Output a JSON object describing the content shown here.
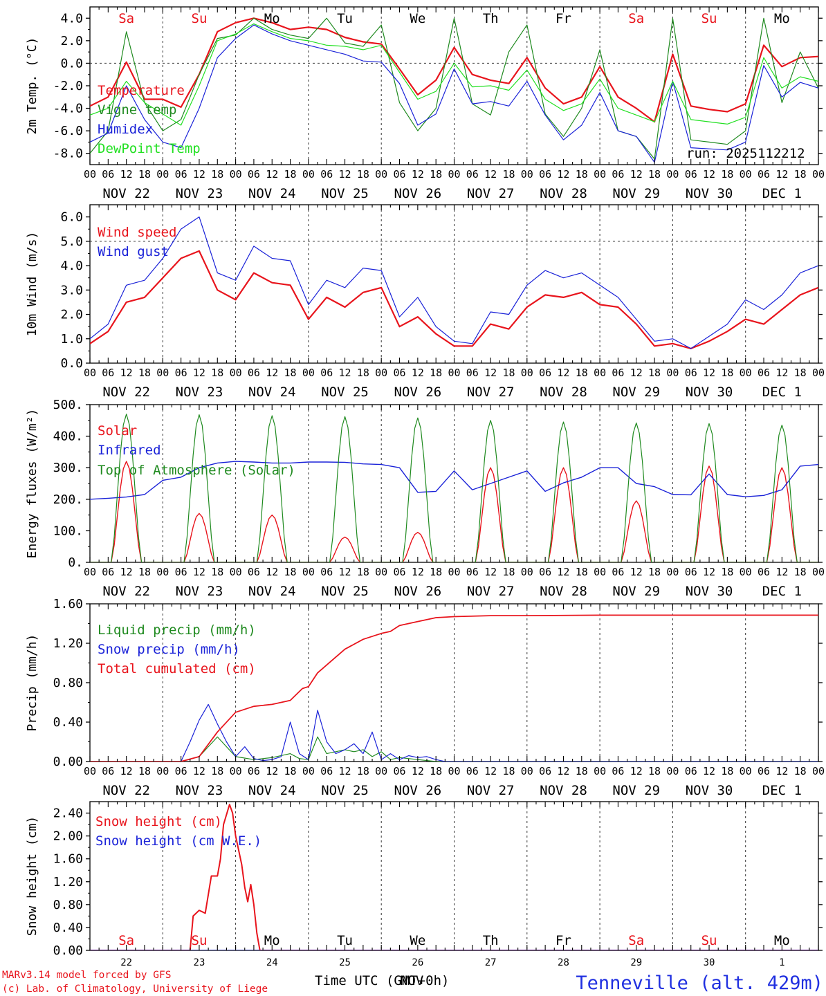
{
  "colors": {
    "red": "#e8141c",
    "green": "#1f8a1f",
    "blue": "#1a22d8",
    "light_green": "#22e022",
    "ink": "#000000",
    "title_blue": "#2030e0"
  },
  "days": {
    "names": [
      "Sa",
      "Su",
      "Mo",
      "Tu",
      "We",
      "Th",
      "Fr",
      "Sa",
      "Su",
      "Mo"
    ],
    "weekend_flags": [
      true,
      true,
      false,
      false,
      false,
      false,
      false,
      true,
      true,
      false
    ],
    "date_labels": [
      "NOV 22",
      "NOV 23",
      "NOV 24",
      "NOV 25",
      "NOV 26",
      "NOV 27",
      "NOV 28",
      "NOV 29",
      "NOV 30",
      "DEC  1"
    ],
    "day_numbers": [
      "22",
      "23",
      "24",
      "25",
      "26",
      "27",
      "28",
      "29",
      "30",
      "1"
    ],
    "hour_ticks": [
      "00",
      "06",
      "12",
      "18"
    ],
    "final_tick": "00"
  },
  "footer": {
    "model": "MARv3.14 model forced by GFS",
    "copyright": "(c) Lab. of Climatology, University of Liege",
    "xlabel": "Time UTC (GMT+0h)",
    "xlabel_overlap": "NOV",
    "station": "Tenneville (alt. 429m)"
  },
  "chart_data": [
    {
      "type": "line",
      "id": "temp",
      "title": "2m Temp. (°C)",
      "ylabel": "2m Temp. (°C)",
      "ylim": [
        -9,
        5
      ],
      "yticks": [
        4,
        2,
        0,
        -2,
        -4,
        -6,
        -8
      ],
      "ytick_labels": [
        "4.0",
        "2.0",
        "0.0",
        "-2.0",
        "-4.0",
        "-6.0",
        "-8.0"
      ],
      "ref_line": 0,
      "annotation": "run: 2025112212",
      "x_unit": "hours since 2025-11-22 00 UTC",
      "series": [
        {
          "name": "Temperature",
          "color": "red",
          "stroke": 2.2,
          "x": [
            0,
            6,
            12,
            18,
            24,
            30,
            36,
            42,
            48,
            54,
            60,
            66,
            72,
            78,
            84,
            90,
            96,
            102,
            108,
            114,
            120,
            126,
            132,
            138,
            144,
            150,
            156,
            162,
            168,
            174,
            180,
            186,
            192,
            198,
            204,
            210,
            216,
            222,
            228,
            234,
            240
          ],
          "y": [
            -3.8,
            -3.0,
            0.1,
            -3.2,
            -3.2,
            -3.9,
            -1.0,
            2.8,
            3.6,
            4.0,
            3.6,
            3.0,
            3.2,
            3.0,
            2.3,
            1.9,
            1.7,
            -0.5,
            -2.8,
            -1.5,
            1.4,
            -1.0,
            -1.5,
            -1.8,
            0.5,
            -2.2,
            -3.6,
            -3.0,
            -0.3,
            -3.0,
            -4.0,
            -5.2,
            0.8,
            -3.8,
            -4.1,
            -4.3,
            -3.6,
            1.6,
            -0.3,
            0.5,
            0.6
          ]
        },
        {
          "name": "Vigne temp",
          "color": "green",
          "stroke": 1.2,
          "x": [
            0,
            6,
            12,
            18,
            24,
            30,
            36,
            42,
            48,
            54,
            60,
            66,
            72,
            78,
            84,
            90,
            96,
            102,
            108,
            114,
            120,
            126,
            132,
            138,
            144,
            150,
            156,
            162,
            168,
            174,
            180,
            186,
            192,
            198,
            204,
            210,
            216,
            222,
            228,
            234,
            240
          ],
          "y": [
            -8.0,
            -6.0,
            2.8,
            -3.5,
            -6.0,
            -5.0,
            -1.0,
            2.2,
            2.5,
            4.0,
            3.0,
            2.5,
            2.2,
            4.0,
            1.8,
            1.5,
            3.4,
            -3.5,
            -6.0,
            -4.0,
            4.0,
            -3.6,
            -4.6,
            1.0,
            3.4,
            -4.5,
            -6.5,
            -4.0,
            1.2,
            -6.0,
            -6.5,
            -8.5,
            4.0,
            -6.8,
            -7.0,
            -7.2,
            -6.0,
            4.0,
            -3.5,
            1.0,
            -2.2
          ]
        },
        {
          "name": "Humidex",
          "color": "blue",
          "stroke": 1.2,
          "x": [
            0,
            6,
            12,
            18,
            24,
            30,
            36,
            42,
            48,
            54,
            60,
            66,
            72,
            78,
            84,
            90,
            96,
            102,
            108,
            114,
            120,
            126,
            132,
            138,
            144,
            150,
            156,
            162,
            168,
            174,
            180,
            186,
            192,
            198,
            204,
            210,
            216,
            222,
            228,
            234,
            240
          ],
          "y": [
            -7.0,
            -6.2,
            -2.0,
            -5.0,
            -7.0,
            -7.5,
            -4.0,
            0.5,
            2.2,
            3.4,
            2.6,
            2.0,
            1.6,
            1.2,
            0.8,
            0.2,
            0.1,
            -1.8,
            -5.5,
            -4.5,
            -0.5,
            -3.6,
            -3.4,
            -3.8,
            -1.6,
            -4.6,
            -6.8,
            -5.5,
            -2.6,
            -6.0,
            -6.5,
            -8.8,
            -1.6,
            -7.5,
            -7.6,
            -7.7,
            -7.0,
            -0.2,
            -3.0,
            -1.7,
            -2.2
          ]
        },
        {
          "name": "DewPoint Temp",
          "color": "light_green",
          "stroke": 1.2,
          "x": [
            0,
            6,
            12,
            18,
            24,
            30,
            36,
            42,
            48,
            54,
            60,
            66,
            72,
            78,
            84,
            90,
            96,
            102,
            108,
            114,
            120,
            126,
            132,
            138,
            144,
            150,
            156,
            162,
            168,
            174,
            180,
            186,
            192,
            198,
            204,
            210,
            216,
            222,
            228,
            234,
            240
          ],
          "y": [
            -4.6,
            -4.0,
            -1.6,
            -3.5,
            -4.5,
            -5.5,
            -2.0,
            2.0,
            2.6,
            3.5,
            2.8,
            2.2,
            2.0,
            1.6,
            1.5,
            1.2,
            1.6,
            -0.8,
            -3.2,
            -2.5,
            0.0,
            -2.1,
            -2.0,
            -2.4,
            -0.6,
            -3.2,
            -4.2,
            -3.6,
            -1.4,
            -4.0,
            -4.6,
            -5.2,
            -1.6,
            -5.0,
            -5.2,
            -5.4,
            -4.8,
            0.5,
            -2.2,
            -1.2,
            -1.6
          ]
        }
      ]
    },
    {
      "type": "line",
      "id": "wind",
      "title": "10m Wind (m/s)",
      "ylabel": "10m Wind (m/s)",
      "ylim": [
        0,
        6.5
      ],
      "yticks": [
        0,
        1,
        2,
        3,
        4,
        5,
        6
      ],
      "ytick_labels": [
        "0.0",
        "1.0",
        "2.0",
        "3.0",
        "4.0",
        "5.0",
        "6.0"
      ],
      "ref_line": 5,
      "x_unit": "hours since 2025-11-22 00 UTC",
      "series": [
        {
          "name": "Wind speed",
          "color": "red",
          "stroke": 2.2,
          "x": [
            0,
            6,
            12,
            18,
            24,
            30,
            36,
            42,
            48,
            54,
            60,
            66,
            72,
            78,
            84,
            90,
            96,
            102,
            108,
            114,
            120,
            126,
            132,
            138,
            144,
            150,
            156,
            162,
            168,
            174,
            180,
            186,
            192,
            198,
            204,
            210,
            216,
            222,
            228,
            234,
            240
          ],
          "y": [
            0.8,
            1.3,
            2.5,
            2.7,
            3.5,
            4.3,
            4.6,
            3.0,
            2.6,
            3.7,
            3.3,
            3.2,
            1.8,
            2.7,
            2.3,
            2.9,
            3.1,
            1.5,
            1.9,
            1.2,
            0.7,
            0.7,
            1.6,
            1.4,
            2.3,
            2.8,
            2.7,
            2.9,
            2.4,
            2.3,
            1.6,
            0.7,
            0.8,
            0.6,
            0.9,
            1.3,
            1.8,
            1.6,
            2.2,
            2.8,
            3.1
          ]
        },
        {
          "name": "Wind gust",
          "color": "blue",
          "stroke": 1.2,
          "x": [
            0,
            6,
            12,
            18,
            24,
            30,
            36,
            42,
            48,
            54,
            60,
            66,
            72,
            78,
            84,
            90,
            96,
            102,
            108,
            114,
            120,
            126,
            132,
            138,
            144,
            150,
            156,
            162,
            168,
            174,
            180,
            186,
            192,
            198,
            204,
            210,
            216,
            222,
            228,
            234,
            240
          ],
          "y": [
            1.0,
            1.6,
            3.2,
            3.4,
            4.3,
            5.5,
            6.0,
            3.7,
            3.4,
            4.8,
            4.3,
            4.2,
            2.4,
            3.4,
            3.1,
            3.9,
            3.8,
            1.9,
            2.7,
            1.5,
            0.9,
            0.8,
            2.1,
            2.0,
            3.2,
            3.8,
            3.5,
            3.7,
            3.2,
            2.7,
            1.8,
            0.9,
            1.0,
            0.6,
            1.1,
            1.6,
            2.6,
            2.2,
            2.8,
            3.7,
            4.0
          ]
        }
      ]
    },
    {
      "type": "line",
      "id": "flux",
      "title": "Energy fluxes (W/m²)",
      "ylabel": "Energy fluxes (W/m²)",
      "ylim": [
        0,
        500
      ],
      "yticks": [
        0,
        100,
        200,
        300,
        400,
        500
      ],
      "ytick_labels": [
        "0.",
        "100.",
        "200.",
        "300.",
        "400.",
        "500."
      ],
      "x_unit": "hours since 2025-11-22 00 UTC",
      "daylight": {
        "start_hour": 7,
        "end_hour": 17,
        "peak_hour": 12
      },
      "series": [
        {
          "name": "Solar",
          "color": "red",
          "stroke": 1.4,
          "daily_peaks": [
            320,
            155,
            150,
            80,
            95,
            300,
            300,
            195,
            305,
            300
          ]
        },
        {
          "name": "Infrared",
          "color": "blue",
          "stroke": 1.4,
          "x": [
            0,
            6,
            12,
            18,
            24,
            30,
            36,
            42,
            48,
            54,
            60,
            66,
            72,
            78,
            84,
            90,
            96,
            102,
            108,
            114,
            120,
            126,
            132,
            138,
            144,
            150,
            156,
            162,
            168,
            174,
            180,
            186,
            192,
            198,
            204,
            210,
            216,
            222,
            228,
            234,
            240
          ],
          "y": [
            200,
            203,
            207,
            215,
            260,
            270,
            300,
            315,
            320,
            318,
            315,
            315,
            318,
            318,
            317,
            312,
            310,
            300,
            222,
            225,
            290,
            230,
            250,
            270,
            290,
            225,
            252,
            270,
            300,
            300,
            250,
            240,
            215,
            214,
            280,
            215,
            208,
            212,
            230,
            305,
            310
          ]
        },
        {
          "name": "Top of Atmosphere (Solar)",
          "color": "green",
          "stroke": 1.2,
          "daily_peaks": [
            470,
            468,
            465,
            462,
            458,
            450,
            445,
            442,
            440,
            435
          ]
        }
      ]
    },
    {
      "type": "line",
      "id": "precip",
      "title": "Precip (mm/h)",
      "ylabel": "Precip (mm/h)",
      "ylim": [
        0,
        1.6
      ],
      "yticks": [
        0,
        0.4,
        0.8,
        1.2,
        1.6
      ],
      "ytick_labels": [
        "0.00",
        "0.40",
        "0.80",
        "1.20",
        "1.60"
      ],
      "x_unit": "hours since 2025-11-22 00 UTC",
      "series": [
        {
          "name": "Liquid precip (mm/h)",
          "color": "green",
          "stroke": 1.2,
          "x": [
            0,
            30,
            36,
            39,
            42,
            45,
            48,
            54,
            60,
            66,
            69,
            72,
            75,
            78,
            81,
            84,
            87,
            90,
            93,
            96,
            99,
            102,
            108,
            114,
            240
          ],
          "y": [
            0,
            0,
            0.05,
            0.15,
            0.25,
            0.15,
            0.05,
            0.02,
            0.04,
            0.08,
            0.03,
            0.02,
            0.25,
            0.08,
            0.1,
            0.12,
            0.1,
            0.12,
            0.05,
            0.1,
            0.02,
            0.04,
            0.02,
            0,
            0
          ]
        },
        {
          "name": "Snow precip (mm/h)",
          "color": "blue",
          "stroke": 1.2,
          "x": [
            0,
            30,
            33,
            36,
            39,
            42,
            45,
            48,
            51,
            54,
            57,
            60,
            63,
            66,
            69,
            72,
            75,
            78,
            81,
            84,
            87,
            90,
            93,
            96,
            99,
            102,
            105,
            108,
            111,
            114,
            117,
            240
          ],
          "y": [
            0,
            0,
            0.2,
            0.42,
            0.58,
            0.38,
            0.2,
            0.05,
            0.15,
            0.03,
            0.01,
            0.02,
            0.05,
            0.4,
            0.08,
            0.02,
            0.52,
            0.2,
            0.08,
            0.12,
            0.18,
            0.08,
            0.3,
            0.02,
            0.08,
            0.02,
            0.06,
            0.04,
            0.05,
            0.02,
            0,
            0
          ]
        },
        {
          "name": "Total cumulated (cm)",
          "color": "red",
          "stroke": 1.8,
          "x": [
            0,
            30,
            36,
            42,
            48,
            54,
            60,
            66,
            70,
            72,
            75,
            78,
            84,
            90,
            96,
            99,
            102,
            108,
            114,
            120,
            132,
            144,
            168,
            192,
            216,
            240
          ],
          "y": [
            0,
            0,
            0.05,
            0.3,
            0.5,
            0.56,
            0.58,
            0.62,
            0.74,
            0.76,
            0.9,
            0.98,
            1.14,
            1.24,
            1.3,
            1.32,
            1.38,
            1.42,
            1.46,
            1.47,
            1.48,
            1.48,
            1.485,
            1.485,
            1.485,
            1.485
          ]
        }
      ]
    },
    {
      "type": "line",
      "id": "snow",
      "title": "Snow height (cm)",
      "ylabel": "Snow height (cm)",
      "ylim": [
        0,
        2.6
      ],
      "yticks": [
        0,
        0.4,
        0.8,
        1.2,
        1.6,
        2.0,
        2.4
      ],
      "ytick_labels": [
        "0.00",
        "0.40",
        "0.80",
        "1.20",
        "1.60",
        "2.00",
        "2.40"
      ],
      "x_unit": "hours since 2025-11-22 00 UTC",
      "series": [
        {
          "name": "Snow height (cm)",
          "color": "red",
          "stroke": 2,
          "x": [
            0,
            33,
            34,
            36,
            38,
            40,
            42,
            43,
            44,
            46,
            47,
            48,
            50,
            51,
            52,
            53,
            54,
            55,
            56,
            240
          ],
          "y": [
            0,
            0,
            0.6,
            0.7,
            0.65,
            1.3,
            1.3,
            1.6,
            2.2,
            2.55,
            2.4,
            2.0,
            1.5,
            1.1,
            0.85,
            1.15,
            0.8,
            0.3,
            0,
            0
          ]
        },
        {
          "name": "Snow height (cm W.E.)",
          "color": "blue",
          "stroke": 1.2,
          "x": [
            0,
            240
          ],
          "y": [
            0,
            0
          ]
        }
      ]
    }
  ]
}
